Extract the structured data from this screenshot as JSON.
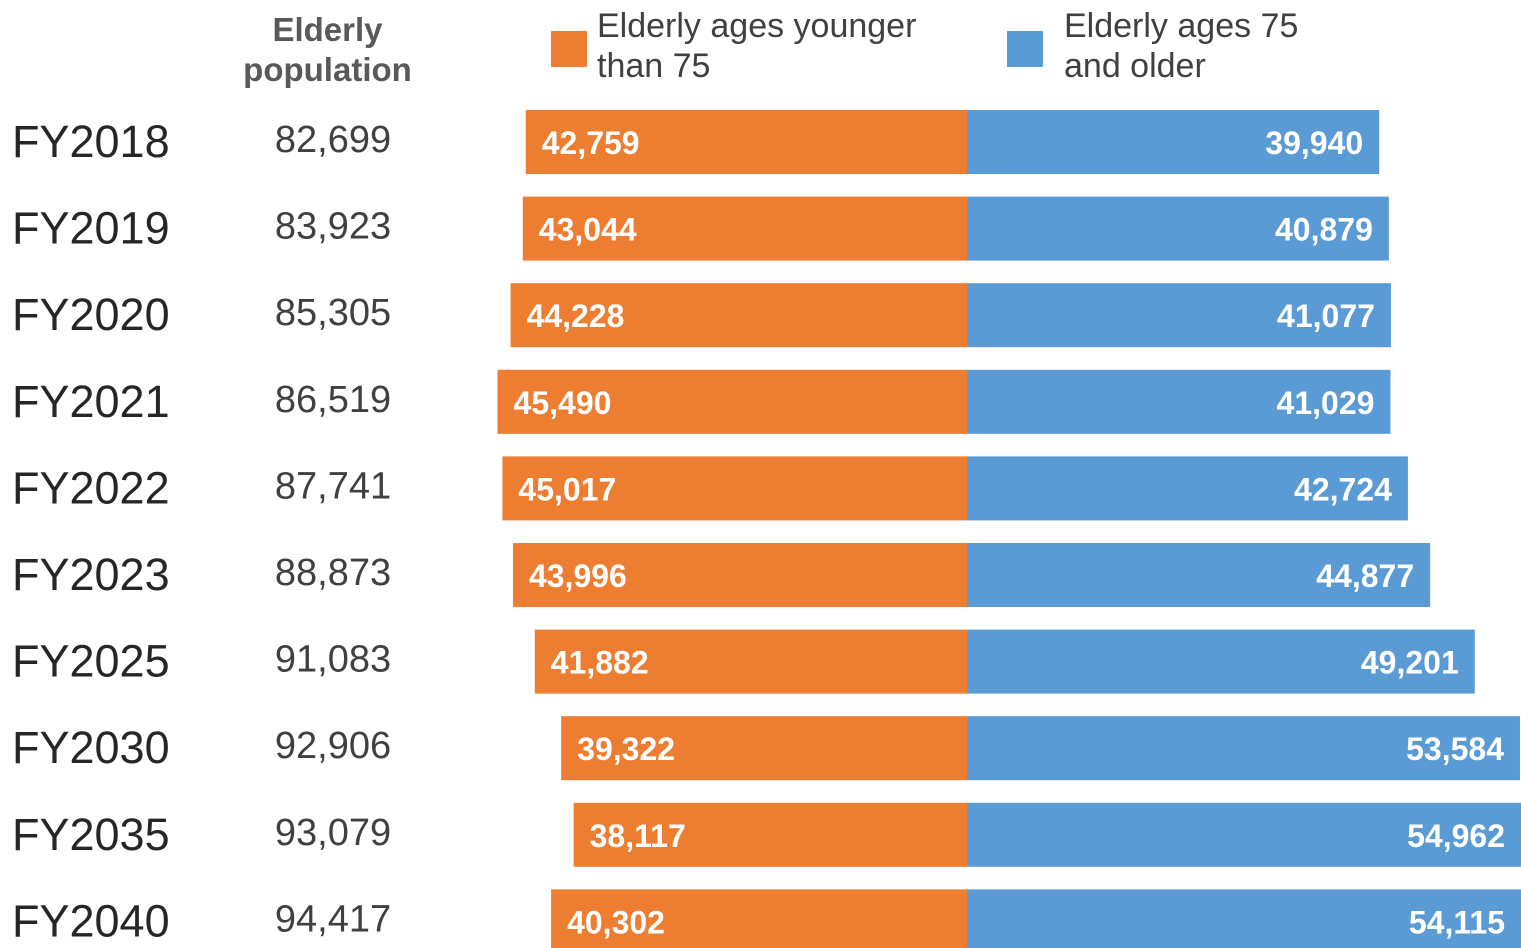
{
  "chart_data": {
    "type": "bar",
    "orientation": "horizontal-diverging",
    "column_header": "Elderly population",
    "categories": [
      "FY2018",
      "FY2019",
      "FY2020",
      "FY2021",
      "FY2022",
      "FY2023",
      "FY2025",
      "FY2030",
      "FY2035",
      "FY2040"
    ],
    "totals": [
      "82,699",
      "83,923",
      "85,305",
      "86,519",
      "87,741",
      "88,873",
      "91,083",
      "92,906",
      "93,079",
      "94,417"
    ],
    "series": [
      {
        "name": "Elderly ages younger than 75",
        "color": "#ED7D31",
        "values": [
          42759,
          43044,
          44228,
          45490,
          45017,
          43996,
          41882,
          39322,
          38117,
          40302
        ],
        "labels": [
          "42,759",
          "43,044",
          "44,228",
          "45,490",
          "45,017",
          "43,996",
          "41,882",
          "39,322",
          "38,117",
          "40,302"
        ]
      },
      {
        "name": "Elderly ages 75 and older",
        "color": "#5B9BD5",
        "values": [
          39940,
          40879,
          41077,
          41029,
          42724,
          44877,
          49201,
          53584,
          54962,
          54115
        ],
        "labels": [
          "39,940",
          "40,879",
          "41,077",
          "41,029",
          "42,724",
          "44,877",
          "49,201",
          "53,584",
          "54,962",
          "54,115"
        ]
      }
    ],
    "legend": "top",
    "grid": false
  }
}
